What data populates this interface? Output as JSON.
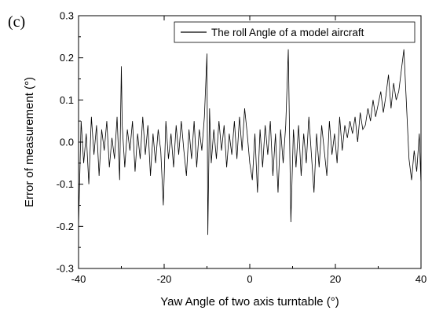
{
  "panel_label": "(c)",
  "chart_data": {
    "type": "line",
    "xlabel": "Yaw Angle of two axis turntable (°)",
    "ylabel": "Error of measurement (°)",
    "xlim": [
      -40,
      40
    ],
    "ylim": [
      -0.3,
      0.3
    ],
    "xticks": [
      -40,
      -20,
      0,
      20,
      40
    ],
    "yticks": [
      -0.3,
      -0.2,
      -0.1,
      0.0,
      0.1,
      0.2,
      0.3
    ],
    "ytick_labels": [
      "-0.3",
      "-0.2",
      "-0.1",
      "0.0",
      "0.1",
      "0.2",
      "0.3"
    ],
    "grid": false,
    "legend_position": "top-right",
    "series": [
      {
        "name": "The roll Angle of a model aircraft",
        "color": "#000000",
        "x": [
          -40,
          -39.4,
          -38.8,
          -38.2,
          -37.6,
          -37.0,
          -36.4,
          -35.8,
          -35.2,
          -34.6,
          -34.0,
          -33.4,
          -32.8,
          -32.2,
          -31.6,
          -31.0,
          -30.4,
          -30.0,
          -29.8,
          -29.2,
          -28.6,
          -28.0,
          -27.4,
          -26.8,
          -26.2,
          -25.6,
          -25.0,
          -24.4,
          -23.8,
          -23.2,
          -22.6,
          -22.0,
          -21.4,
          -20.8,
          -20.2,
          -19.6,
          -19.0,
          -18.4,
          -17.8,
          -17.2,
          -16.6,
          -16.0,
          -15.4,
          -14.8,
          -14.2,
          -13.6,
          -13.0,
          -12.4,
          -11.8,
          -11.2,
          -10.6,
          -10.0,
          -9.8,
          -9.4,
          -9.0,
          -8.4,
          -7.8,
          -7.2,
          -6.6,
          -6.0,
          -5.4,
          -4.8,
          -4.2,
          -3.6,
          -3.0,
          -2.4,
          -1.8,
          -1.2,
          -0.6,
          0.0,
          0.6,
          1.2,
          1.8,
          2.4,
          3.0,
          3.6,
          4.2,
          4.8,
          5.4,
          6.0,
          6.6,
          7.2,
          7.8,
          8.4,
          9.0,
          9.6,
          10.2,
          10.8,
          11.4,
          12.0,
          12.6,
          13.2,
          13.8,
          14.4,
          15.0,
          15.6,
          16.2,
          16.8,
          17.4,
          18.0,
          18.6,
          19.2,
          19.8,
          20.4,
          21.0,
          21.6,
          22.2,
          22.8,
          23.4,
          24.0,
          24.6,
          25.2,
          25.8,
          26.4,
          27.0,
          27.6,
          28.2,
          28.8,
          29.4,
          30.0,
          30.6,
          31.2,
          31.8,
          32.4,
          33.0,
          33.6,
          34.2,
          34.8,
          35.4,
          36.0,
          36.6,
          37.2,
          37.8,
          38.4,
          39.0,
          39.6,
          40.0
        ],
        "y": [
          -0.2,
          0.05,
          -0.05,
          0.02,
          -0.1,
          0.06,
          -0.03,
          0.04,
          -0.08,
          0.03,
          -0.02,
          0.05,
          -0.06,
          0.01,
          -0.04,
          0.06,
          -0.09,
          0.18,
          0.04,
          -0.06,
          0.03,
          -0.02,
          0.05,
          -0.07,
          0.02,
          -0.04,
          0.06,
          -0.03,
          0.04,
          -0.08,
          0.02,
          -0.05,
          0.03,
          -0.02,
          -0.15,
          0.05,
          -0.04,
          0.02,
          -0.06,
          0.04,
          -0.03,
          0.05,
          -0.02,
          -0.08,
          0.03,
          -0.04,
          0.05,
          -0.06,
          0.03,
          -0.02,
          0.06,
          0.21,
          -0.22,
          0.08,
          -0.05,
          0.03,
          -0.04,
          0.05,
          -0.02,
          0.04,
          -0.06,
          0.02,
          -0.03,
          0.05,
          -0.04,
          0.06,
          -0.02,
          0.08,
          0.02,
          -0.05,
          -0.09,
          0.02,
          -0.12,
          0.03,
          -0.06,
          0.04,
          -0.03,
          0.05,
          -0.08,
          0.02,
          -0.12,
          0.03,
          -0.05,
          0.04,
          0.22,
          -0.19,
          0.03,
          -0.06,
          0.04,
          -0.08,
          0.02,
          -0.05,
          0.06,
          -0.03,
          -0.12,
          0.02,
          -0.06,
          0.04,
          -0.02,
          -0.08,
          0.05,
          -0.03,
          0.02,
          -0.05,
          0.06,
          -0.02,
          0.04,
          0.01,
          0.05,
          0.02,
          0.06,
          0.0,
          0.07,
          0.03,
          0.04,
          0.08,
          0.05,
          0.1,
          0.06,
          0.09,
          0.12,
          0.07,
          0.11,
          0.16,
          0.08,
          0.14,
          0.1,
          0.12,
          0.17,
          0.22,
          0.09,
          -0.04,
          -0.09,
          -0.02,
          -0.07,
          0.02,
          -0.1
        ]
      }
    ]
  }
}
